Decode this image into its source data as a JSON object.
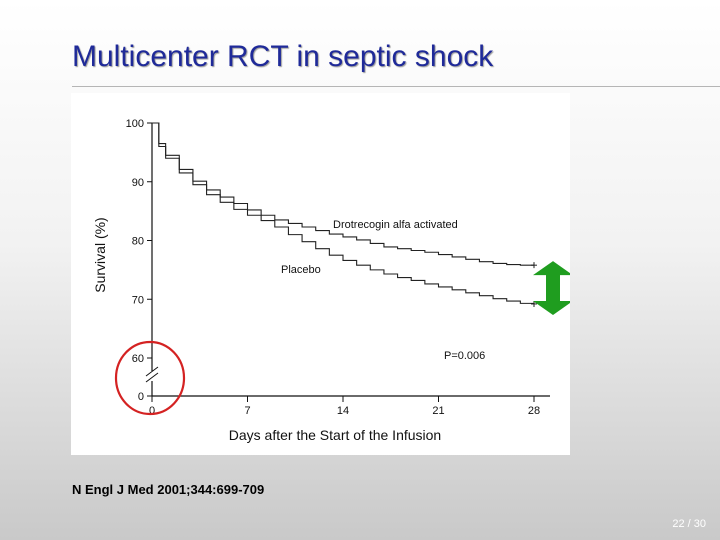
{
  "slide": {
    "title": "Multicenter RCT in septic shock",
    "citation": "N Engl J Med 2001;344:699-709",
    "page_number": "22 / 30"
  },
  "colors": {
    "title": "#1f2a99",
    "circle_annotation": "#d42222",
    "arrow_annotation": "#1f9d1f"
  },
  "chart_data": {
    "type": "line",
    "title": "",
    "xlabel": "Days after the Start of the Infusion",
    "ylabel": "Survival (%)",
    "xlim": [
      0,
      28
    ],
    "x_ticks": [
      0,
      7,
      14,
      21,
      28
    ],
    "y_ticks": [
      0,
      60,
      70,
      80,
      90,
      100
    ],
    "y_axis_break": "between 0 and 60",
    "grid": false,
    "series": [
      {
        "name": "Drotrecogin alfa activated",
        "x": [
          0,
          0.5,
          1,
          2,
          3,
          4,
          5,
          6,
          7,
          8,
          9,
          10,
          11,
          12,
          13,
          14,
          15,
          16,
          17,
          18,
          19,
          20,
          21,
          22,
          23,
          24,
          25,
          26,
          27,
          28
        ],
        "y": [
          100,
          96.5,
          94.5,
          92.1,
          90.1,
          88.6,
          87.4,
          86.3,
          85.2,
          84.3,
          83.5,
          82.9,
          82.3,
          81.7,
          81.1,
          80.6,
          80.1,
          79.5,
          78.9,
          78.6,
          78.3,
          78.0,
          77.6,
          77.2,
          76.8,
          76.4,
          76.1,
          75.9,
          75.8,
          75.8
        ]
      },
      {
        "name": "Placebo",
        "x": [
          0,
          0.5,
          1,
          2,
          3,
          4,
          5,
          6,
          7,
          8,
          9,
          10,
          11,
          12,
          13,
          14,
          15,
          16,
          17,
          18,
          19,
          20,
          21,
          22,
          23,
          24,
          25,
          26,
          27,
          28
        ],
        "y": [
          100,
          96,
          94,
          91.5,
          89.5,
          87.8,
          86.5,
          85.3,
          84.3,
          83.4,
          82.3,
          81.0,
          79.8,
          78.6,
          77.5,
          76.6,
          75.8,
          75.0,
          74.3,
          73.7,
          73.2,
          72.6,
          72.1,
          71.6,
          71.1,
          70.6,
          70.1,
          69.7,
          69.3,
          69.2
        ]
      }
    ],
    "annotation": "P=0.006"
  }
}
